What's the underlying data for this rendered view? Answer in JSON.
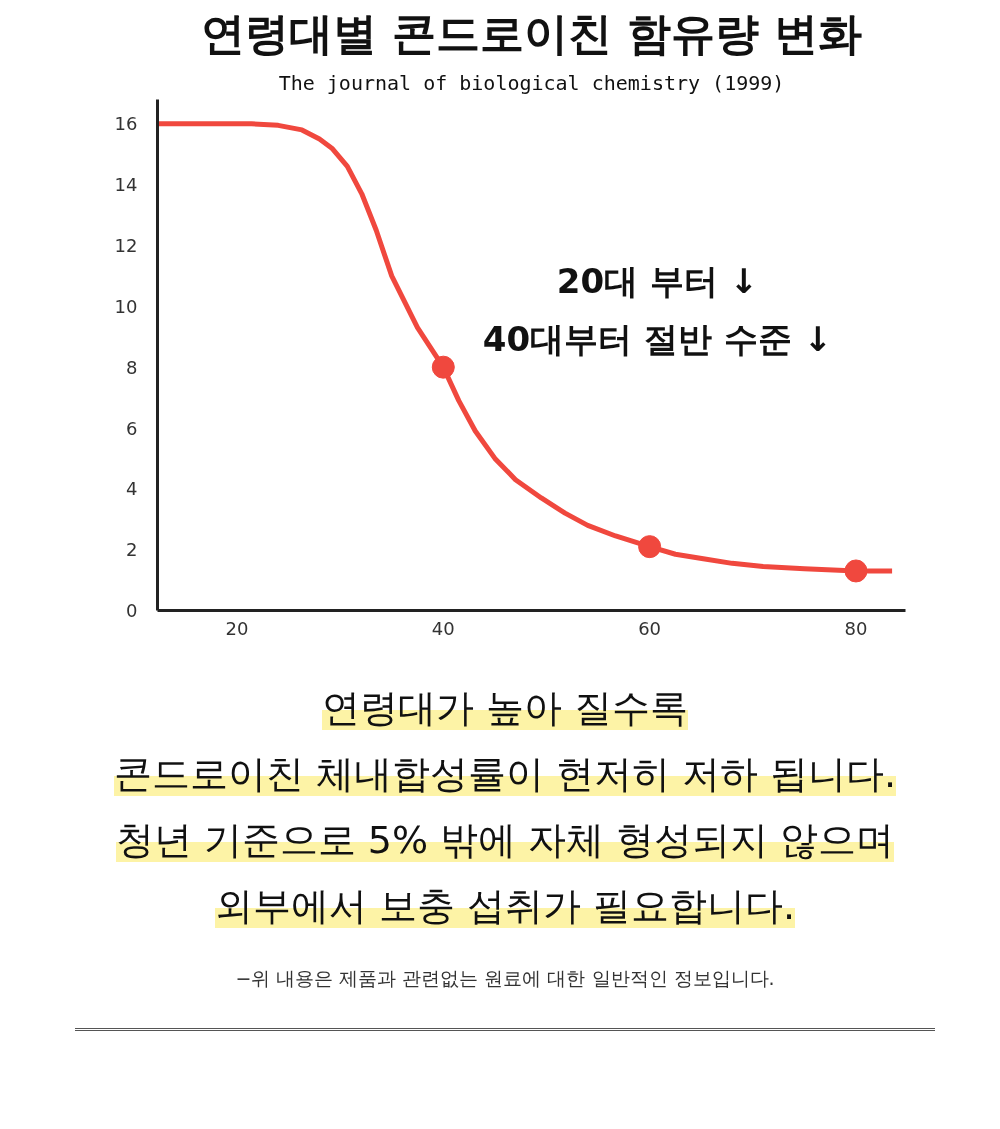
{
  "chart_data": {
    "type": "line",
    "title": "연령대별 콘드로이친 함유량 변화",
    "subtitle": "The journal of biological chemistry (1999)",
    "xlim": [
      12.3,
      84.8
    ],
    "xticks": [
      20,
      40,
      60,
      80
    ],
    "ylim": [
      0,
      16.8
    ],
    "yticks": [
      0,
      2,
      4,
      6,
      8,
      10,
      12,
      14,
      16
    ],
    "grid": false,
    "line_style": "solid",
    "series": [
      {
        "color": "#f0483e",
        "marker": "none",
        "x": [
          12.3,
          21.4,
          24,
          26.3,
          28,
          29.2,
          30.7,
          32.1,
          33.5,
          35.0,
          37.5,
          40,
          41.5,
          43.1,
          45,
          47.0,
          49.5,
          51.8,
          54,
          56.7,
          60,
          62.5,
          65.2,
          68,
          71,
          75,
          80,
          83.5
        ],
        "values": [
          16.0,
          16.0,
          15.95,
          15.8,
          15.5,
          15.2,
          14.6,
          13.7,
          12.5,
          11.0,
          9.3,
          8,
          6.9,
          5.9,
          5.0,
          4.3,
          3.7,
          3.2,
          2.8,
          2.45,
          2.1,
          1.85,
          1.7,
          1.55,
          1.45,
          1.37,
          1.3,
          1.3
        ]
      },
      {
        "type": "scatter",
        "color": "#f0483e",
        "marker": "circle",
        "x": [
          40,
          60,
          80
        ],
        "values": [
          8,
          2.1,
          1.3
        ]
      }
    ],
    "annotations": [
      "20대 부터 ↓",
      "40대부터 절반 수준 ↓",
      "연령대가 높아 질수록",
      "콘드로이친 체내합성률이 현저히 저하 됩니다.",
      "청년 기준으로 5% 밖에 자체 형성되지 않으며",
      "외부에서 보충 섭취가 필요합니다.",
      "−위 내용은 제품과 관련없는 원료에 대한 일반적인 정보입니다."
    ]
  }
}
